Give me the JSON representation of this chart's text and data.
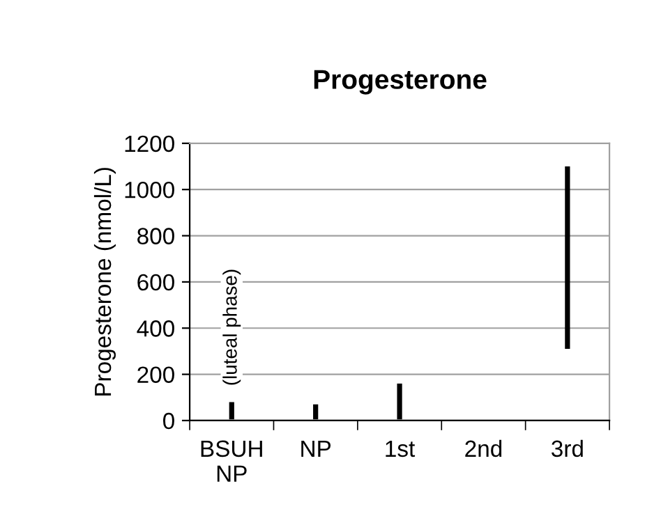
{
  "chart_data": {
    "type": "bar",
    "title": "Progesterone",
    "ylabel": "Progesterone (nmol/L)",
    "categories": [
      "BSUH\nNP",
      "NP",
      "1st",
      "2nd",
      "3rd"
    ],
    "values": [
      75,
      65,
      155,
      null,
      790
    ],
    "base": [
      5,
      5,
      5,
      null,
      310
    ],
    "color": "#000000",
    "ylim": [
      0,
      1200
    ],
    "yticks": [
      0,
      200,
      400,
      600,
      800,
      1000,
      1200
    ],
    "grid": "y",
    "annotations": [
      "(luteal phase)"
    ]
  }
}
